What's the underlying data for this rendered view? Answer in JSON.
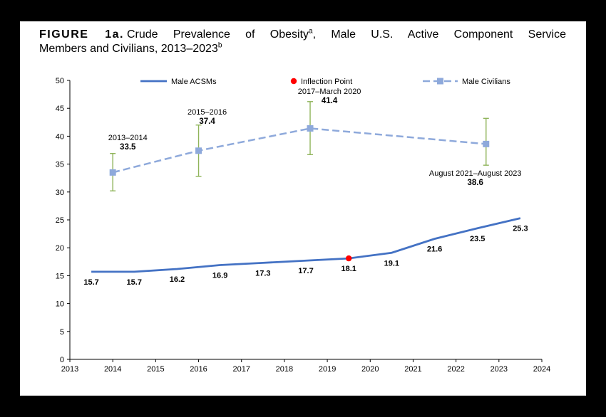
{
  "figure": {
    "label": "FIGURE 1a.",
    "title_line1": "Crude Prevalence of Obesity",
    "superscript_a": "a",
    "title_line1_tail": ", Male U.S. Active Component Service",
    "title_line2": "Members and Civilians, 2013–2023",
    "superscript_b": "b"
  },
  "chart_data": {
    "type": "line",
    "title": "Crude Prevalence of Obesity, Male U.S. Active Component Service Members and Civilians, 2013–2023",
    "xlabel": "",
    "ylabel": "",
    "xlim": [
      2013,
      2024
    ],
    "ylim": [
      0,
      50
    ],
    "x_ticks": [
      2013,
      2014,
      2015,
      2016,
      2017,
      2018,
      2019,
      2020,
      2021,
      2022,
      2023,
      2024
    ],
    "y_ticks": [
      0,
      5,
      10,
      15,
      20,
      25,
      30,
      35,
      40,
      45,
      50
    ],
    "grid": false,
    "legend_position": "top-inside",
    "legend": [
      {
        "label": "Male ACSMs",
        "swatch": "solid-line",
        "color": "#4472c4"
      },
      {
        "label": "Inflection Point",
        "swatch": "dot",
        "color": "#ff0000"
      },
      {
        "label": "Male Civilians",
        "swatch": "dashed-line-with-square",
        "color": "#8ea9db"
      }
    ],
    "series": [
      {
        "name": "Male ACSMs",
        "type": "line",
        "style": "solid",
        "color": "#4472c4",
        "x": [
          2013.5,
          2014.5,
          2015.5,
          2016.5,
          2017.5,
          2018.5,
          2019.5,
          2020.5,
          2021.5,
          2022.5,
          2023.5
        ],
        "y": [
          15.7,
          15.7,
          16.2,
          16.9,
          17.3,
          17.7,
          18.1,
          19.1,
          21.6,
          23.5,
          25.3
        ],
        "point_labels": [
          "15.7",
          "15.7",
          "16.2",
          "16.9",
          "17.3",
          "17.7",
          "18.1",
          "19.1",
          "21.6",
          "23.5",
          "25.3"
        ]
      },
      {
        "name": "Male Civilians",
        "type": "line",
        "style": "dashed",
        "marker": "square",
        "color": "#8ea9db",
        "x": [
          2014,
          2016,
          2018.6,
          2022.7
        ],
        "y": [
          33.5,
          37.4,
          41.4,
          38.6
        ],
        "error_low": [
          30.2,
          32.8,
          36.7,
          34.8
        ],
        "error_high": [
          36.9,
          42.0,
          46.2,
          43.2
        ],
        "error_color": "#8fb45a"
      }
    ],
    "inflection_point": {
      "x": 2019.5,
      "y": 18.1,
      "color": "#ff0000"
    },
    "annotations": [
      {
        "label": "2013–2014",
        "value": "33.5",
        "ax": 2014.35,
        "ay": 39.3
      },
      {
        "label": "2015–2016",
        "value": "37.4",
        "ax": 2016.2,
        "ay": 43.9
      },
      {
        "label": "2017–March 2020",
        "value": "41.4",
        "ax": 2019.05,
        "ay": 47.6
      },
      {
        "label": "August 2021–August 2023",
        "value": "38.6",
        "ax": 2022.45,
        "ay": 32.9
      }
    ]
  }
}
